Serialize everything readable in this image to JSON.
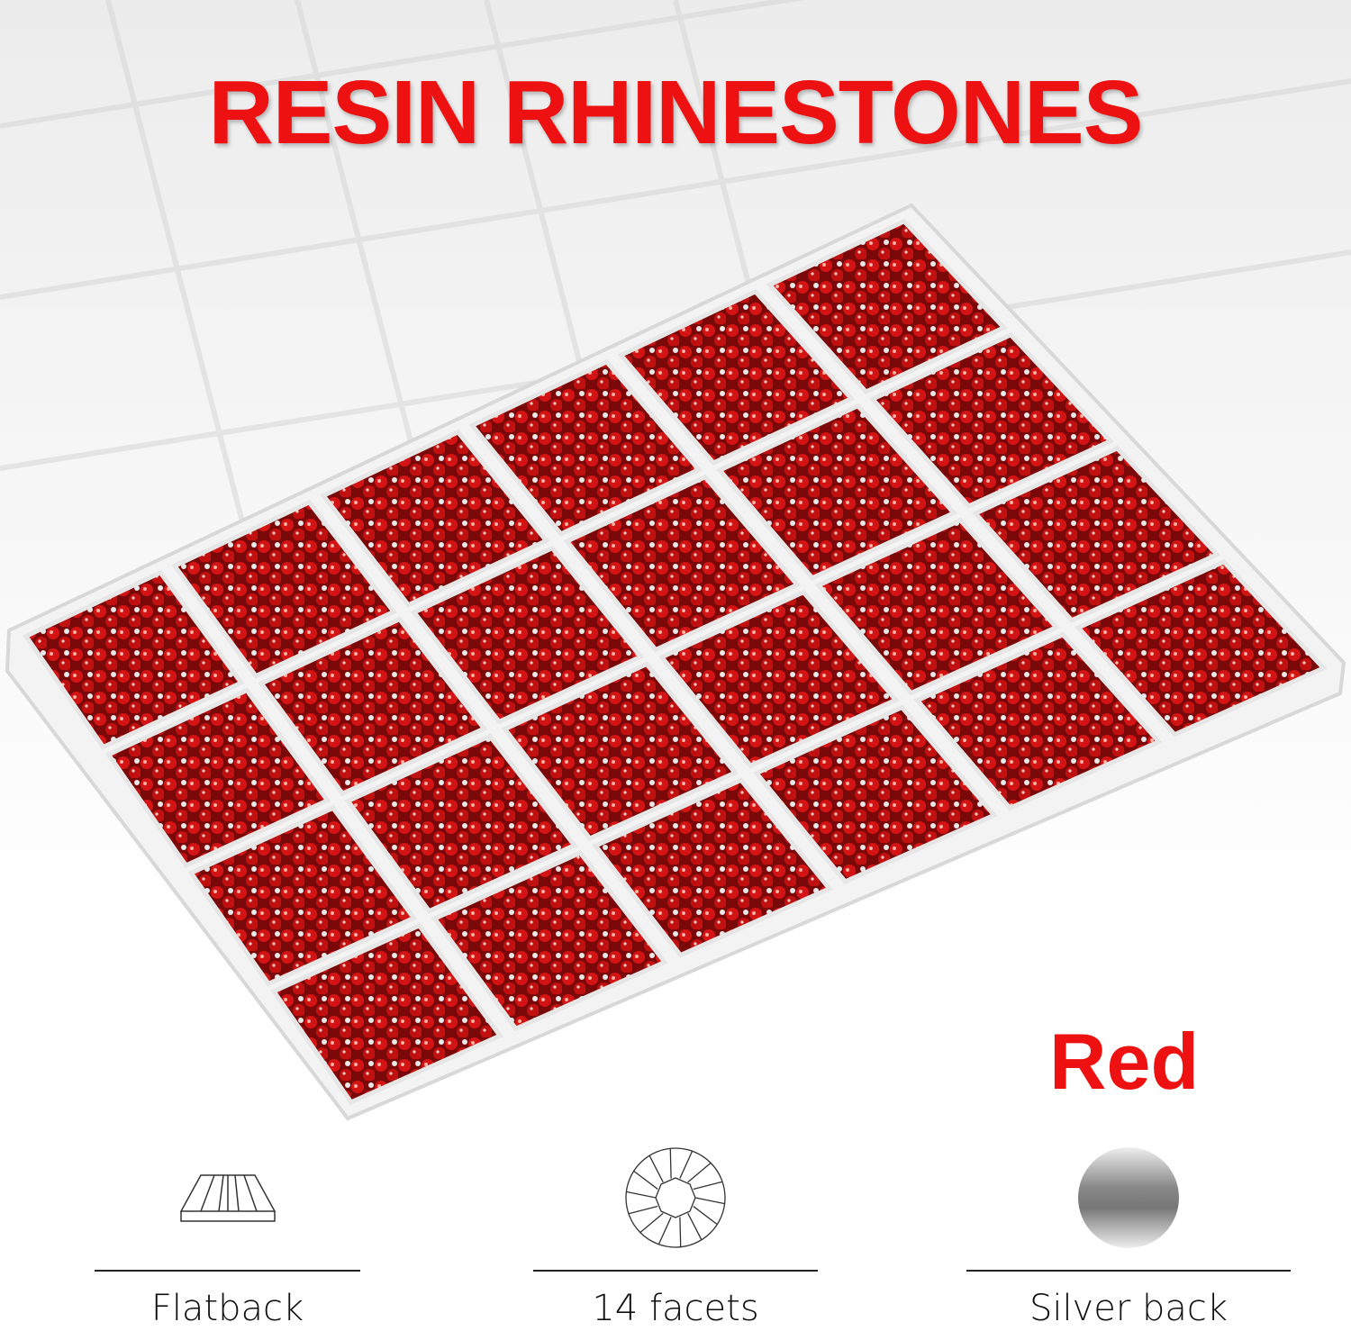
{
  "title": "RESIN RHINESTONES",
  "color_name": "Red",
  "colors": {
    "title": "#ee1111",
    "stone": "#c81010",
    "stone_dark": "#6a0606"
  },
  "features": [
    {
      "icon": "flatback-icon",
      "label": "Flatback"
    },
    {
      "icon": "facets-icon",
      "label": "14 facets"
    },
    {
      "icon": "silver-back-icon",
      "label": "Silver back"
    }
  ]
}
